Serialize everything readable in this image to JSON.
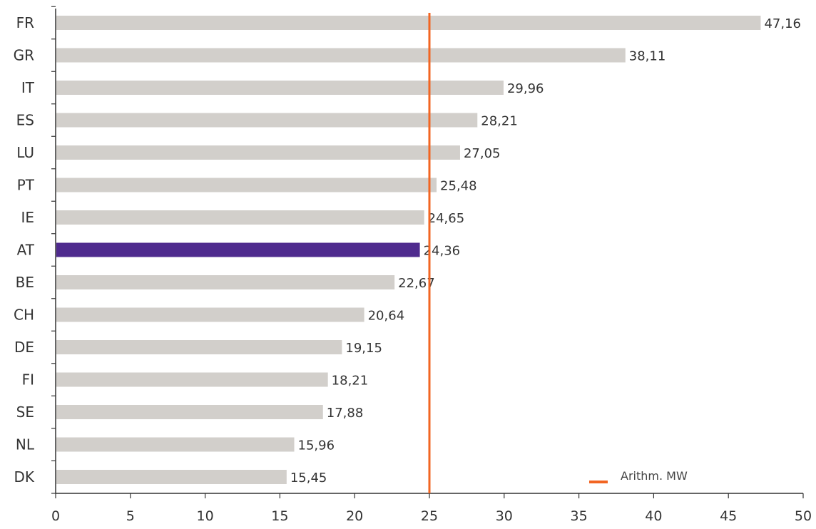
{
  "chart_data": {
    "type": "bar",
    "orientation": "horizontal",
    "categories": [
      "FR",
      "GR",
      "IT",
      "ES",
      "LU",
      "PT",
      "IE",
      "AT",
      "BE",
      "CH",
      "DE",
      "FI",
      "SE",
      "NL",
      "DK"
    ],
    "values": [
      47.16,
      38.11,
      29.96,
      28.21,
      27.05,
      25.48,
      24.65,
      24.36,
      22.67,
      20.64,
      19.15,
      18.21,
      17.88,
      15.96,
      15.45
    ],
    "value_labels": [
      "47,16",
      "38,11",
      "29,96",
      "28,21",
      "27,05",
      "25,48",
      "24,65",
      "24,36",
      "22,67",
      "20,64",
      "19,15",
      "18,21",
      "17,88",
      "15,96",
      "15,45"
    ],
    "highlight_category": "AT",
    "xlim": [
      0,
      50
    ],
    "x_ticks": [
      0,
      5,
      10,
      15,
      20,
      25,
      30,
      35,
      40,
      45,
      50
    ],
    "reference_line": {
      "value": 25,
      "label": "Arithm. MW"
    },
    "legend": {
      "position": "bottom-right",
      "label": "Arithm. MW"
    },
    "grid": false,
    "colors": {
      "bar": "#d2cfcb",
      "highlight": "#4f2b8e",
      "reference": "#f26522",
      "axis": "#333333"
    }
  }
}
